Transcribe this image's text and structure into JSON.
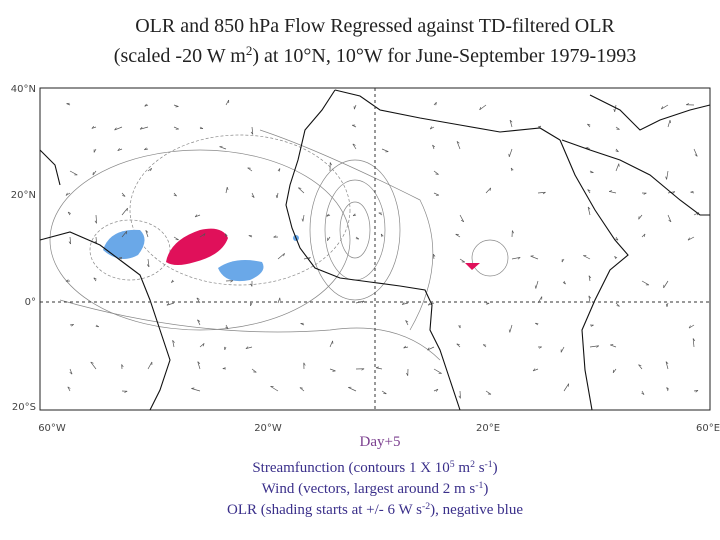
{
  "title": {
    "lines": [
      [
        "OLR and 850 hPa Flow Regressed against TD-filtered OLR"
      ],
      [
        "(scaled -20 W m",
        "2",
        ") at 10°N, 10°W for June-September 1979-1993"
      ]
    ]
  },
  "map": {
    "lat_labels": [
      "40°N",
      "20°N",
      "0°",
      "20°S"
    ],
    "lon_labels": [
      "60°W",
      "20°W",
      "20°E",
      "60°E"
    ]
  },
  "caption": {
    "day": "Day+5",
    "lines": [
      [
        "Streamfunction (contours 1 X 10",
        "5",
        " m",
        "2",
        " s",
        "-1",
        ")"
      ],
      [
        "Wind (vectors, largest around 2 m s",
        "-1",
        ")"
      ],
      [
        "OLR (shading starts at +/- 6 W s",
        "-2",
        "), negative blue"
      ]
    ]
  }
}
